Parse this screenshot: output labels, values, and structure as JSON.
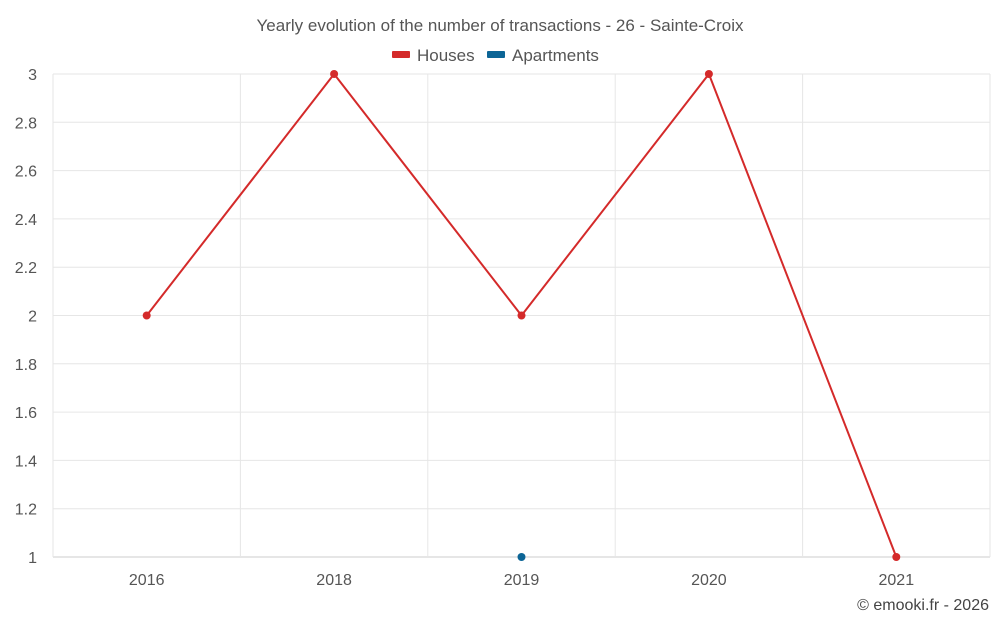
{
  "chart_data": {
    "type": "line",
    "title": "Yearly evolution of the number of transactions - 26 - Sainte-Croix",
    "xlabel": "",
    "ylabel": "",
    "categories": [
      "2016",
      "2018",
      "2019",
      "2020",
      "2021"
    ],
    "ylim": [
      1,
      3
    ],
    "yticks": [
      "1",
      "1.2",
      "1.4",
      "1.6",
      "1.8",
      "2",
      "2.2",
      "2.4",
      "2.6",
      "2.8",
      "3"
    ],
    "grid": true,
    "legend_position": "top-center",
    "series": [
      {
        "name": "Houses",
        "color": "#d42a2a",
        "values": [
          2,
          3,
          2,
          3,
          1
        ]
      },
      {
        "name": "Apartments",
        "color": "#0c6596",
        "values": [
          null,
          null,
          1,
          null,
          null
        ]
      }
    ]
  },
  "credit": "© emooki.fr - 2026"
}
